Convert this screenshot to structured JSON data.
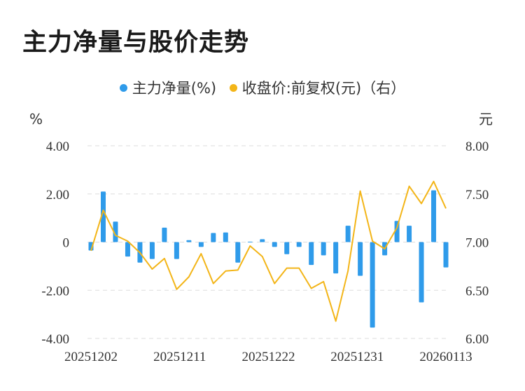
{
  "title": "主力净量与股价走势",
  "legend": {
    "bar_label": "主力净量(%)",
    "line_label": "收盘价:前复权(元)（右）"
  },
  "axis": {
    "left_unit": "%",
    "right_unit": "元"
  },
  "colors": {
    "bar": "#2f9bea",
    "line": "#f3b518",
    "grid": "#dddddd"
  },
  "chart_data": {
    "type": "bar",
    "x_tick_labels": [
      "20251202",
      "20251211",
      "20251222",
      "20251231",
      "20260113"
    ],
    "y_left": {
      "ticks": [
        "4.00",
        "2.00",
        "0",
        "-2.00",
        "-4.00"
      ],
      "range": [
        -4,
        4
      ]
    },
    "y_right": {
      "ticks": [
        "8.00",
        "7.50",
        "7.00",
        "6.50",
        "6.00"
      ],
      "range": [
        6,
        8
      ]
    },
    "grid": true,
    "legend_position": "top",
    "series": [
      {
        "name": "主力净量(%)",
        "type": "bar",
        "axis": "left",
        "values": [
          -0.35,
          2.1,
          0.85,
          -0.6,
          -0.85,
          -0.7,
          0.6,
          -0.7,
          0.08,
          -0.2,
          0.38,
          0.4,
          -0.85,
          0.02,
          0.12,
          -0.2,
          -0.5,
          -0.2,
          -0.95,
          -0.55,
          -1.3,
          0.68,
          -1.4,
          -3.55,
          -0.55,
          0.88,
          0.68,
          -2.5,
          2.15,
          -1.05
        ]
      },
      {
        "name": "收盘价:前复权(元)（右）",
        "type": "line",
        "axis": "right",
        "values": [
          6.91,
          7.33,
          7.07,
          7.01,
          6.89,
          6.72,
          6.83,
          6.51,
          6.64,
          6.88,
          6.57,
          6.7,
          6.71,
          6.96,
          6.85,
          6.57,
          6.73,
          6.73,
          6.52,
          6.59,
          6.18,
          6.7,
          7.53,
          7.01,
          6.93,
          7.15,
          7.58,
          7.4,
          7.63,
          7.35
        ]
      }
    ]
  }
}
